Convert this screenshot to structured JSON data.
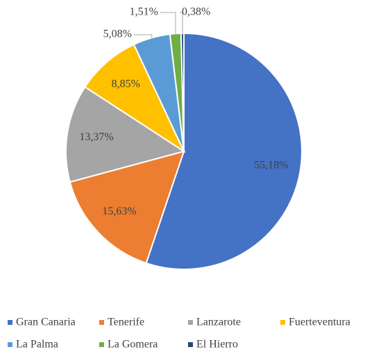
{
  "chart_data": {
    "type": "pie",
    "categories": [
      "Gran Canaria",
      "Tenerife",
      "Lanzarote",
      "Fuerteventura",
      "La Palma",
      "La Gomera",
      "El Hierro"
    ],
    "values": [
      55.18,
      15.63,
      13.37,
      8.85,
      5.08,
      1.51,
      0.38
    ],
    "value_labels": [
      "55,18%",
      "15,63%",
      "13,37%",
      "8,85%",
      "5,08%",
      "1,51%",
      "0,38%"
    ],
    "colors": [
      "#4472c4",
      "#ed7d31",
      "#a5a5a5",
      "#ffc000",
      "#5b9bd5",
      "#70ad47",
      "#264478"
    ],
    "legend": "bottom"
  }
}
